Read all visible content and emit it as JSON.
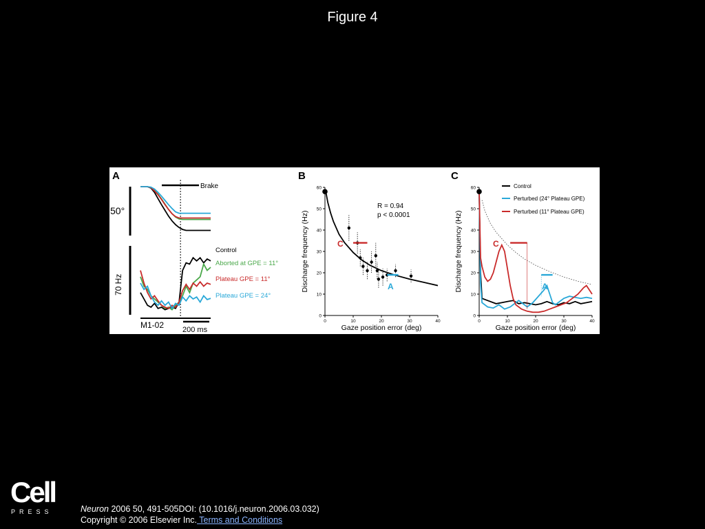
{
  "page": {
    "title": "Figure 4"
  },
  "figure": {
    "panelA": {
      "letter": "A",
      "position_scale": "50°",
      "rate_scale": "70 Hz",
      "brake_label": "Brake",
      "cell_id": "M1-02",
      "time_scale": "200 ms",
      "legend": [
        {
          "label": "Control",
          "color": "#000000"
        },
        {
          "label": "Aborted at GPE = 11°",
          "color": "#4aa84a"
        },
        {
          "label": "Plateau GPE = 11°",
          "color": "#c92a2a"
        },
        {
          "label": "Plateau GPE = 24°",
          "color": "#29a8d8"
        }
      ]
    },
    "panelB": {
      "letter": "B",
      "stats": {
        "r": "R = 0.94",
        "p": "p < 0.0001"
      },
      "marker_c": "C",
      "marker_a": "A"
    },
    "panelC": {
      "letter": "C",
      "marker_c": "C",
      "marker_a": "A"
    }
  },
  "colors": {
    "control": "#000000",
    "perturbed24": "#29a8d8",
    "perturbed11": "#c92a2a",
    "aborted": "#4aa84a"
  },
  "chart_data": [
    {
      "type": "scatter",
      "panel": "B",
      "xlabel": "Gaze position error (deg)",
      "ylabel": "Discharge frequency (Hz)",
      "xlim": [
        0,
        40
      ],
      "ylim": [
        0,
        60
      ],
      "xticks": [
        "0",
        "10",
        "20",
        "30",
        "40"
      ],
      "yticks": [
        "0",
        "10",
        "20",
        "30",
        "40",
        "50",
        "60"
      ],
      "points": [
        {
          "x": 0,
          "y": 58,
          "err": 0
        },
        {
          "x": 8.5,
          "y": 41,
          "err": 6
        },
        {
          "x": 11.5,
          "y": 34,
          "err": 5
        },
        {
          "x": 12.5,
          "y": 27,
          "err": 4
        },
        {
          "x": 13.5,
          "y": 23,
          "err": 4
        },
        {
          "x": 15,
          "y": 21,
          "err": 4
        },
        {
          "x": 16.5,
          "y": 25,
          "err": 5
        },
        {
          "x": 18,
          "y": 28,
          "err": 6
        },
        {
          "x": 18.5,
          "y": 21,
          "err": 4
        },
        {
          "x": 19,
          "y": 17,
          "err": 4
        },
        {
          "x": 20.5,
          "y": 18,
          "err": 4
        },
        {
          "x": 22,
          "y": 19,
          "err": 3
        },
        {
          "x": 25,
          "y": 21,
          "err": 3
        },
        {
          "x": 30.5,
          "y": 18.5,
          "err": 3
        }
      ],
      "fit": {
        "x": [
          0.3,
          1,
          2,
          3,
          5,
          7,
          10,
          13,
          16,
          20,
          25,
          30,
          35,
          40
        ],
        "y": [
          58,
          53,
          48,
          44,
          38,
          34,
          29.5,
          26,
          23.5,
          21,
          18.8,
          17,
          15.5,
          14
        ]
      },
      "segments": [
        {
          "label": "C",
          "color": "#c92a2a",
          "x1": 10,
          "x2": 15,
          "y": 34
        },
        {
          "label": "A",
          "color": "#29a8d8",
          "x1": 22,
          "x2": 26,
          "y": 19
        }
      ]
    },
    {
      "type": "line",
      "panel": "C",
      "xlabel": "Gaze position error (deg)",
      "ylabel": "Discharge frequency (Hz)",
      "xlim": [
        0,
        40
      ],
      "ylim": [
        0,
        60
      ],
      "xticks": [
        "0",
        "10",
        "20",
        "30",
        "40"
      ],
      "yticks": [
        "0",
        "10",
        "20",
        "30",
        "40",
        "50",
        "60"
      ],
      "legend_position": "top-right",
      "start_point": {
        "x": 0,
        "y": 58
      },
      "series": [
        {
          "name": "Control",
          "color": "#000000",
          "x": [
            0,
            0.5,
            1,
            3,
            6,
            8,
            10,
            12,
            14,
            16,
            18,
            20,
            22,
            24,
            26,
            28,
            30,
            32,
            34,
            36,
            38,
            40
          ],
          "y": [
            58,
            20,
            8,
            7,
            5.5,
            6,
            6.5,
            7,
            5.5,
            6,
            5.5,
            5,
            5.5,
            6.5,
            5.5,
            5,
            6,
            5.5,
            6.5,
            5.5,
            6,
            6.5
          ]
        },
        {
          "name": "Perturbed (24° Plateau GPE)",
          "color": "#29a8d8",
          "x": [
            0,
            0.5,
            1,
            3,
            5,
            7,
            9,
            11,
            13,
            14,
            15,
            17,
            19,
            21,
            23,
            24,
            25,
            26,
            27,
            28,
            30,
            32,
            34,
            36,
            38,
            40
          ],
          "y": [
            58,
            15,
            6,
            4,
            3.5,
            5,
            3,
            4,
            6,
            7,
            6,
            4,
            6,
            9,
            12,
            14,
            10,
            6,
            5,
            6,
            8,
            9,
            8.5,
            8,
            8.5,
            8
          ]
        },
        {
          "name": "Perturbed (11° Plateau GPE)",
          "color": "#c92a2a",
          "x": [
            0,
            0.5,
            1,
            2,
            3,
            4,
            5,
            6,
            7,
            8,
            9,
            10,
            11,
            12,
            13,
            15,
            17,
            19,
            21,
            23,
            25,
            27,
            29,
            31,
            33,
            35,
            37,
            38,
            39,
            40
          ],
          "y": [
            58,
            27,
            23,
            18,
            16,
            17,
            20,
            25,
            30,
            33,
            30,
            22,
            14,
            8,
            5,
            3,
            2,
            1.5,
            1.5,
            2,
            3,
            4,
            5,
            6,
            8,
            10,
            13,
            14,
            12,
            10
          ]
        }
      ],
      "bound_curve": {
        "x": [
          1,
          2,
          4,
          6,
          8,
          10,
          13,
          16,
          20,
          25,
          30,
          35,
          40
        ],
        "y": [
          54,
          49,
          43,
          39,
          36,
          33,
          29.5,
          26.5,
          23.5,
          20.5,
          18,
          16,
          14.5
        ]
      },
      "segments": [
        {
          "label": "C",
          "color": "#c92a2a",
          "x1": 11,
          "x2": 17,
          "y": 34
        },
        {
          "label": "A",
          "color": "#29a8d8",
          "x1": 22,
          "x2": 26,
          "y": 19
        }
      ]
    },
    {
      "type": "line",
      "panel": "A",
      "title": "",
      "xlabel": "",
      "ylabel": "",
      "units_note": "Traces: gaze position (top) and discharge rate (bottom) vs time; values normalized 0-1 within each trace block (time runs left→right; brake onset marked by dotted line).",
      "time_norm": [
        0,
        0.05,
        0.1,
        0.15,
        0.2,
        0.25,
        0.3,
        0.35,
        0.4,
        0.45,
        0.5,
        0.55,
        0.6,
        0.65,
        0.7,
        0.75,
        0.8,
        0.85,
        0.9,
        0.95,
        1
      ],
      "brake_time_norm": 0.57,
      "position_traces": [
        {
          "name": "Control",
          "color": "#000000",
          "y": [
            1,
            1,
            1,
            0.97,
            0.88,
            0.75,
            0.62,
            0.5,
            0.38,
            0.28,
            0.2,
            0.14,
            0.1,
            0.08,
            0.08,
            0.08,
            0.08,
            0.08,
            0.08,
            0.08,
            0.08
          ]
        },
        {
          "name": "Aborted at GPE = 11°",
          "color": "#4aa84a",
          "y": [
            1,
            1,
            1,
            0.98,
            0.92,
            0.84,
            0.74,
            0.63,
            0.52,
            0.43,
            0.36,
            0.32,
            0.31,
            0.31,
            0.31,
            0.31,
            0.31,
            0.31,
            0.31,
            0.31,
            0.31
          ]
        },
        {
          "name": "Plateau GPE = 11°",
          "color": "#c92a2a",
          "y": [
            1,
            1,
            1,
            0.98,
            0.91,
            0.83,
            0.73,
            0.62,
            0.52,
            0.43,
            0.37,
            0.34,
            0.34,
            0.34,
            0.34,
            0.34,
            0.34,
            0.34,
            0.34,
            0.34,
            0.34
          ]
        },
        {
          "name": "Plateau GPE = 24°",
          "color": "#29a8d8",
          "y": [
            1,
            1,
            1,
            0.99,
            0.95,
            0.88,
            0.8,
            0.71,
            0.62,
            0.54,
            0.47,
            0.44,
            0.44,
            0.44,
            0.44,
            0.44,
            0.44,
            0.44,
            0.44,
            0.44,
            0.44
          ]
        }
      ],
      "rate_traces": [
        {
          "name": "Control",
          "color": "#000000",
          "y": [
            0.35,
            0.25,
            0.15,
            0.12,
            0.18,
            0.1,
            0.12,
            0.08,
            0.1,
            0.12,
            0.1,
            0.2,
            0.7,
            0.82,
            0.8,
            0.9,
            0.85,
            0.9,
            0.82,
            0.88,
            0.85
          ]
        },
        {
          "name": "Aborted at GPE = 11°",
          "color": "#4aa84a",
          "y": [
            0.6,
            0.45,
            0.4,
            0.3,
            0.25,
            0.2,
            0.15,
            0.1,
            0.12,
            0.08,
            0.15,
            0.2,
            0.3,
            0.45,
            0.35,
            0.5,
            0.55,
            0.6,
            0.8,
            0.7,
            0.75
          ]
        },
        {
          "name": "Plateau GPE = 11°",
          "color": "#c92a2a",
          "y": [
            0.7,
            0.5,
            0.35,
            0.25,
            0.3,
            0.22,
            0.15,
            0.12,
            0.1,
            0.15,
            0.12,
            0.2,
            0.38,
            0.48,
            0.4,
            0.5,
            0.45,
            0.52,
            0.45,
            0.5,
            0.48
          ]
        },
        {
          "name": "Plateau GPE = 24°",
          "color": "#29a8d8",
          "y": [
            0.5,
            0.4,
            0.45,
            0.3,
            0.2,
            0.15,
            0.22,
            0.15,
            0.2,
            0.1,
            0.18,
            0.15,
            0.28,
            0.22,
            0.3,
            0.25,
            0.28,
            0.2,
            0.3,
            0.24,
            0.26
          ]
        }
      ]
    }
  ],
  "footer": {
    "logo_word": "Cell",
    "logo_press": "PRESS",
    "journal": "Neuron",
    "citation": " 2006 50, 491-505DOI: (10.1016/j.neuron.2006.03.032)",
    "copyright": "Copyright © 2006 Elsevier Inc.",
    "terms_link": " Terms and Conditions"
  }
}
